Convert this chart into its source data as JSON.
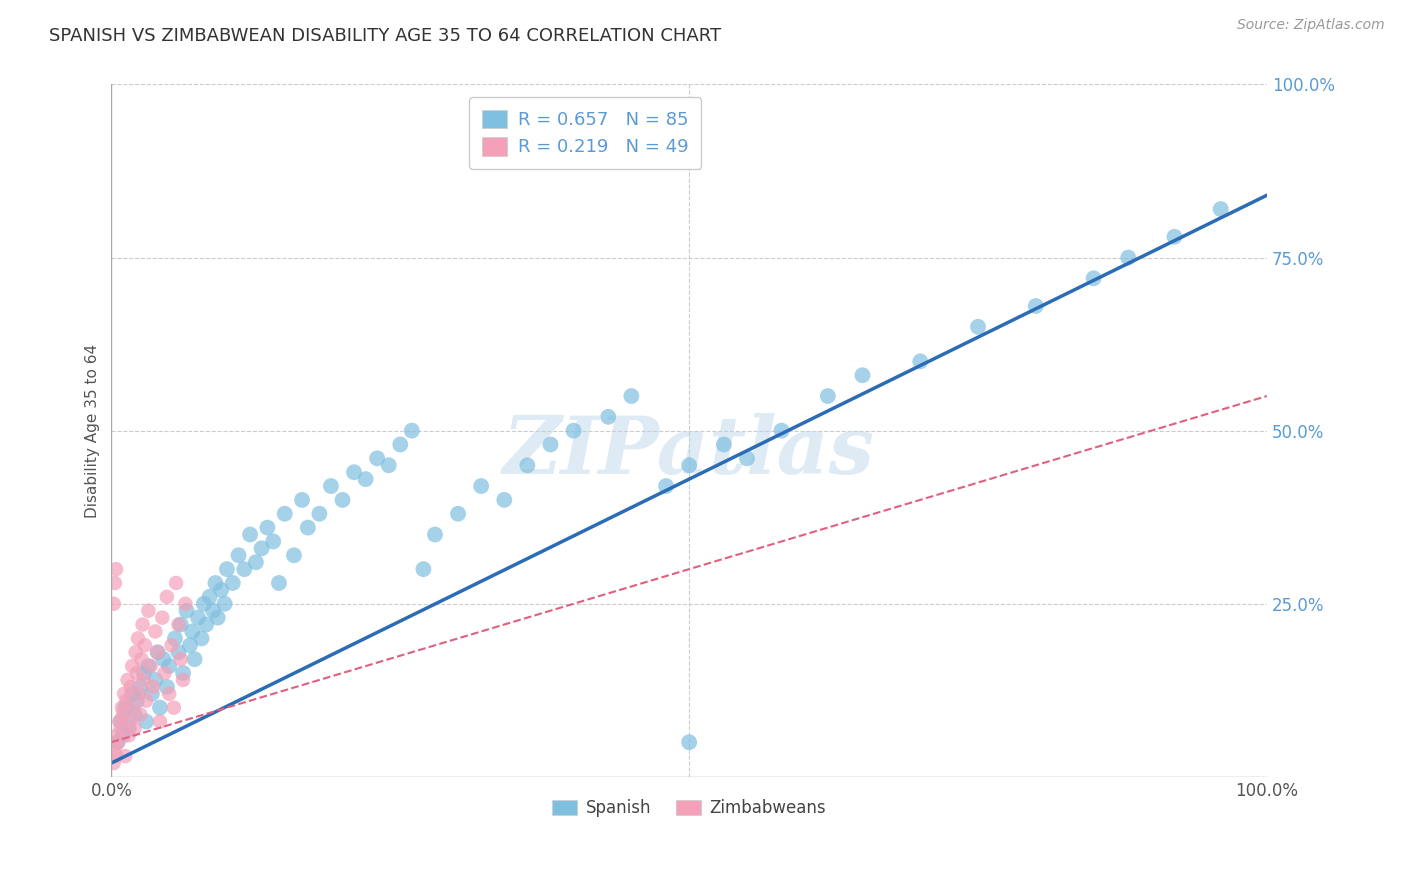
{
  "title": "SPANISH VS ZIMBABWEAN DISABILITY AGE 35 TO 64 CORRELATION CHART",
  "source_text": "Source: ZipAtlas.com",
  "ylabel": "Disability Age 35 to 64",
  "xlim": [
    0.0,
    1.0
  ],
  "ylim": [
    0.0,
    1.0
  ],
  "background_color": "#ffffff",
  "watermark_text": "ZIPatlas",
  "legend_r1": "R = 0.657",
  "legend_n1": "N = 85",
  "legend_r2": "R = 0.219",
  "legend_n2": "N = 49",
  "blue_scatter_color": "#7fbfdf",
  "pink_scatter_color": "#f4a0b8",
  "blue_line_color": "#2b6cb5",
  "pink_line_color": "#e06080",
  "grid_color": "#cccccc",
  "ytick_color": "#5b9bd5",
  "axis_color": "#aaaaaa",
  "title_color": "#333333",
  "source_color": "#999999",
  "blue_line_slope": 0.82,
  "blue_line_intercept": 0.02,
  "pink_line_slope": 0.5,
  "pink_line_intercept": 0.05,
  "spanish_x": [
    0.005,
    0.008,
    0.01,
    0.012,
    0.015,
    0.018,
    0.02,
    0.022,
    0.025,
    0.028,
    0.03,
    0.032,
    0.035,
    0.038,
    0.04,
    0.042,
    0.045,
    0.048,
    0.05,
    0.055,
    0.058,
    0.06,
    0.062,
    0.065,
    0.068,
    0.07,
    0.072,
    0.075,
    0.078,
    0.08,
    0.082,
    0.085,
    0.088,
    0.09,
    0.092,
    0.095,
    0.098,
    0.1,
    0.105,
    0.11,
    0.115,
    0.12,
    0.125,
    0.13,
    0.135,
    0.14,
    0.145,
    0.15,
    0.158,
    0.165,
    0.17,
    0.18,
    0.19,
    0.2,
    0.21,
    0.22,
    0.23,
    0.24,
    0.25,
    0.26,
    0.27,
    0.28,
    0.3,
    0.32,
    0.34,
    0.36,
    0.38,
    0.4,
    0.43,
    0.45,
    0.48,
    0.5,
    0.53,
    0.55,
    0.58,
    0.62,
    0.65,
    0.7,
    0.75,
    0.8,
    0.85,
    0.88,
    0.92,
    0.96,
    0.5
  ],
  "spanish_y": [
    0.05,
    0.08,
    0.06,
    0.1,
    0.07,
    0.12,
    0.09,
    0.11,
    0.13,
    0.15,
    0.08,
    0.16,
    0.12,
    0.14,
    0.18,
    0.1,
    0.17,
    0.13,
    0.16,
    0.2,
    0.18,
    0.22,
    0.15,
    0.24,
    0.19,
    0.21,
    0.17,
    0.23,
    0.2,
    0.25,
    0.22,
    0.26,
    0.24,
    0.28,
    0.23,
    0.27,
    0.25,
    0.3,
    0.28,
    0.32,
    0.3,
    0.35,
    0.31,
    0.33,
    0.36,
    0.34,
    0.28,
    0.38,
    0.32,
    0.4,
    0.36,
    0.38,
    0.42,
    0.4,
    0.44,
    0.43,
    0.46,
    0.45,
    0.48,
    0.5,
    0.3,
    0.35,
    0.38,
    0.42,
    0.4,
    0.45,
    0.48,
    0.5,
    0.52,
    0.55,
    0.42,
    0.45,
    0.48,
    0.46,
    0.5,
    0.55,
    0.58,
    0.6,
    0.65,
    0.68,
    0.72,
    0.75,
    0.78,
    0.82,
    0.05
  ],
  "zimbabwe_x": [
    0.002,
    0.003,
    0.004,
    0.005,
    0.006,
    0.007,
    0.008,
    0.009,
    0.01,
    0.011,
    0.012,
    0.013,
    0.014,
    0.015,
    0.016,
    0.017,
    0.018,
    0.019,
    0.02,
    0.021,
    0.022,
    0.023,
    0.024,
    0.025,
    0.026,
    0.027,
    0.028,
    0.029,
    0.03,
    0.032,
    0.034,
    0.036,
    0.038,
    0.04,
    0.042,
    0.044,
    0.046,
    0.048,
    0.05,
    0.052,
    0.054,
    0.056,
    0.058,
    0.06,
    0.062,
    0.064,
    0.002,
    0.003,
    0.004
  ],
  "zimbabwe_y": [
    0.02,
    0.04,
    0.03,
    0.06,
    0.05,
    0.08,
    0.07,
    0.1,
    0.09,
    0.12,
    0.03,
    0.11,
    0.14,
    0.06,
    0.08,
    0.13,
    0.16,
    0.1,
    0.07,
    0.18,
    0.15,
    0.2,
    0.12,
    0.09,
    0.17,
    0.22,
    0.14,
    0.19,
    0.11,
    0.24,
    0.16,
    0.13,
    0.21,
    0.18,
    0.08,
    0.23,
    0.15,
    0.26,
    0.12,
    0.19,
    0.1,
    0.28,
    0.22,
    0.17,
    0.14,
    0.25,
    0.25,
    0.28,
    0.3
  ]
}
